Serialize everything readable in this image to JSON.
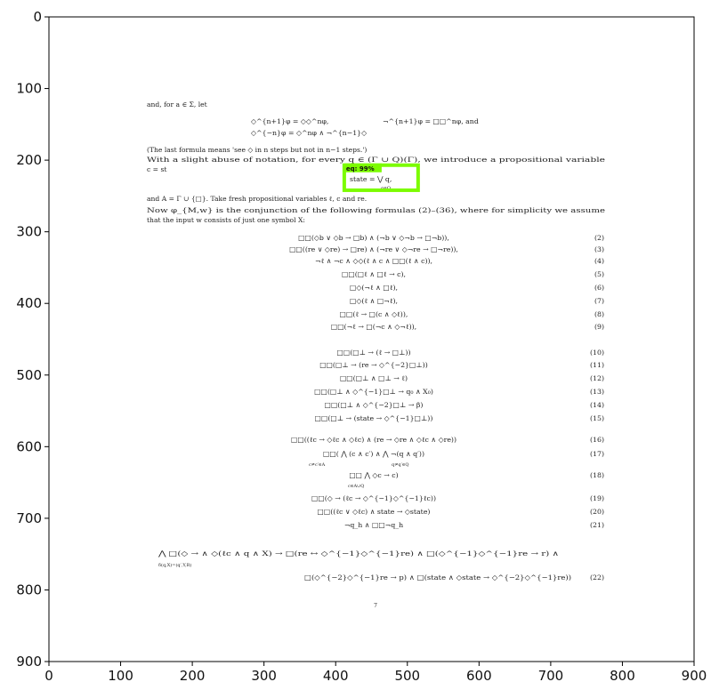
{
  "axes": {
    "x_ticks": [
      "0",
      "100",
      "200",
      "300",
      "400",
      "500",
      "600",
      "700",
      "800",
      "900"
    ],
    "y_ticks": [
      "0",
      "100",
      "200",
      "300",
      "400",
      "500",
      "600",
      "700",
      "800",
      "900"
    ],
    "xlim": [
      0,
      900
    ],
    "ylim": [
      900,
      0
    ],
    "frame_color": "#000000"
  },
  "detection": {
    "label": "eq: 99%",
    "box_color": "#7cfc00",
    "label_bg": "#7cfc00",
    "box": {
      "x0": 412,
      "y0": 207,
      "x1": 515,
      "y1": 242
    }
  },
  "document": {
    "prose": [
      "and, for a ∈ Σ, let",
      "(The last formula means 'see ◇ in n steps but not in n−1 steps.')",
      "    With a slight abuse of notation, for every q ∈ (Γ ∪ Q)(Γ), we introduce a propositional variable",
      "and A = Γ ∪ {□}. Take fresh propositional variables ℓ, c and re.",
      "    Now φ_{M,w} is the conjunction of the following formulas (2)–(36), where for simplicity we assume",
      "that the input w consists of just one symbol X:"
    ],
    "inline_defs": [
      "◇^{n+1}φ = ◇◇^nφ,",
      "¬^{n+1}φ = □□^nφ,    and",
      "◇^{−n}φ = ◇^nφ ∧ ¬^{n−1}◇"
    ],
    "eq_detected": "state = ⋁ q,",
    "eq_detected_sub": "q∈Q",
    "eq_detected_prefix": "c = st",
    "equations": [
      {
        "text": "□□(◇b ∨ ◇b → □b) ∧ (¬b ∨ ◇¬b → □¬b)),",
        "num": "(2)"
      },
      {
        "text": "□□((re ∨ ◇re) → □re) ∧ (¬re ∨ ◇¬re → □¬re)),",
        "num": "(3)"
      },
      {
        "text": "¬ℓ ∧ ¬c ∧ ◇◇(ℓ ∧ c ∧ □□(ℓ ∧ c)),",
        "num": "(4)"
      },
      {
        "text": "□□(□ℓ ∧ □ℓ → c),",
        "num": "(5)"
      },
      {
        "text": "□◇(¬ℓ ∧ □ℓ),",
        "num": "(6)"
      },
      {
        "text": "□◇(ℓ ∧ □¬ℓ),",
        "num": "(7)"
      },
      {
        "text": "□□(ℓ → □(c ∧ ◇ℓ)),",
        "num": "(8)"
      },
      {
        "text": "□□(¬ℓ → □(¬c ∧ ◇¬ℓ)),",
        "num": "(9)"
      },
      {
        "text": "□□(□⊥ → (ℓ → □⊥))",
        "num": "(10)"
      },
      {
        "text": "□□(□⊥ → (re → ◇^{−2}□⊥))",
        "num": "(11)"
      },
      {
        "text": "□□(□⊥ ∧ □⊥ → ℓ)",
        "num": "(12)"
      },
      {
        "text": "□□(□⊥ ∧ ◇^{−1}□⊥ → q₀ ∧ X₀)",
        "num": "(13)"
      },
      {
        "text": "□□(□⊥ ∧ ◇^{−2}□⊥ → β)",
        "num": "(14)"
      },
      {
        "text": "□□(□⊥ → (state → ◇^{−1}□⊥))",
        "num": "(15)"
      },
      {
        "text": "□□((ℓc → ◇ℓc ∧ ◇ℓc) ∧ (re → ◇re ∧ ◇ℓc ∧ ◇re))",
        "num": "(16)"
      },
      {
        "text": "□□(  ⋀  (c ∧ c′) ∧  ⋀  ¬(q ∧ q′))",
        "num": "(17)"
      },
      {
        "text": "□□   ⋀   ◇c → c)",
        "num": "(18)"
      },
      {
        "text": "□□(◇ → (ℓc → ◇^{−1}◇^{−1}ℓc))",
        "num": "(19)"
      },
      {
        "text": "□□((ℓc ∨ ◇ℓc) ∧ state → ◇state)",
        "num": "(20)"
      },
      {
        "text": "¬q_h ∧ □□¬q_h",
        "num": "(21)"
      },
      {
        "text": "⋀   □(◇ → ∧ ◇(ℓc ∧ q ∧ X) → □(re ↔ ◇^{−1}◇^{−1}re) ∧ □(◇^{−1}◇^{−1}re → r) ∧",
        "num": ""
      },
      {
        "text": "□(◇^{−2}◇^{−1}re → p) ∧ □(state ∧ ◇state → ◇^{−2}◇^{−1}re))",
        "num": "(22)"
      }
    ],
    "eq_subscripts": [
      "c≠c′∈A",
      "q≠q′∈Q",
      "c∈A∪Q",
      "δ(q,X)=(q′,Y,R)"
    ],
    "page_number": "7"
  }
}
